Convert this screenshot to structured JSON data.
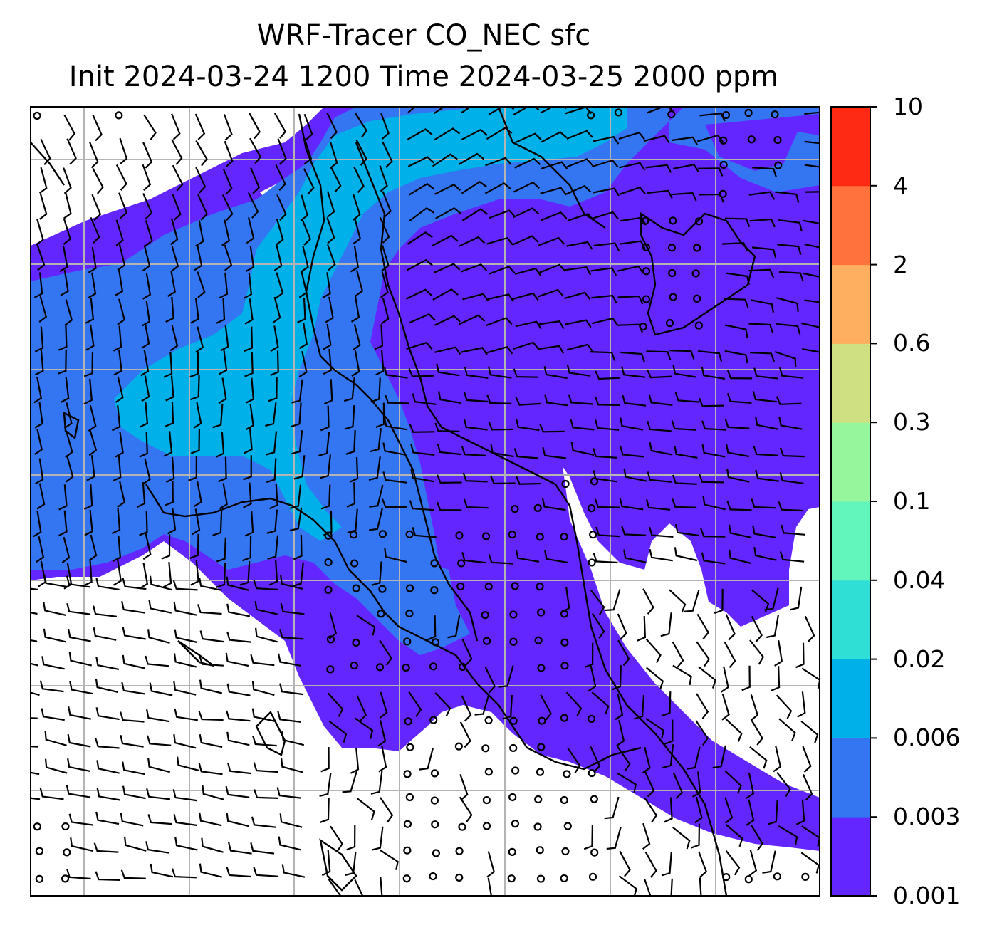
{
  "title": {
    "line1": "WRF-Tracer CO_NEC sfc",
    "line2": "Init 2024-03-24 1200 Time 2024-03-25 2000 ppm"
  },
  "colorbar": {
    "levels": [
      "0.001",
      "0.003",
      "0.006",
      "0.02",
      "0.04",
      "0.1",
      "0.3",
      "0.6",
      "2",
      "4",
      "10"
    ],
    "colors": [
      "#6426ff",
      "#3475f2",
      "#00b0e8",
      "#2fded5",
      "#62f6bd",
      "#96f69b",
      "#cfe083",
      "#ffaf5f",
      "#ff723e",
      "#ff2a14"
    ]
  },
  "map": {
    "background": "#ffffff",
    "gridline_color": "#b4b4b4",
    "symbols": [
      "wind-barb",
      "calm-circle",
      "coastline"
    ]
  }
}
